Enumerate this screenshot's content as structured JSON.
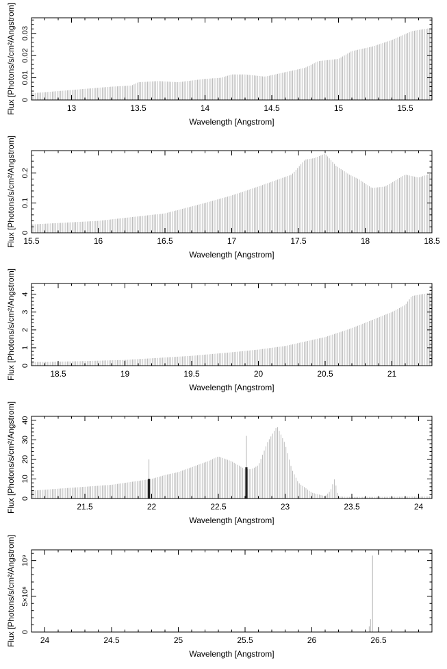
{
  "chart_data": [
    {
      "type": "bar",
      "xlabel": "Wavelength [Angstrom]",
      "ylabel": "Flux [Photons/s/cm²/Angstrom]",
      "xlim": [
        12.7,
        15.7
      ],
      "ylim": [
        0,
        0.037
      ],
      "xticks": [
        13,
        13.5,
        14,
        14.5,
        15,
        15.5
      ],
      "xtick_labels": [
        "13",
        "13.5",
        "14",
        "14.5",
        "15",
        "15.5"
      ],
      "yticks": [
        0,
        0.01,
        0.02,
        0.03
      ],
      "ytick_labels": [
        "0",
        "0.01",
        "0.02",
        "0.03"
      ],
      "bin_width": 0.0125,
      "color": "#b4b4b4",
      "envelope_x": [
        12.7,
        13.0,
        13.3,
        13.45,
        13.5,
        13.65,
        13.8,
        14.0,
        14.12,
        14.2,
        14.3,
        14.45,
        14.6,
        14.75,
        14.85,
        15.0,
        15.1,
        15.25,
        15.4,
        15.55,
        15.7
      ],
      "envelope_y": [
        0.003,
        0.0045,
        0.006,
        0.0065,
        0.008,
        0.0085,
        0.008,
        0.0095,
        0.01,
        0.0115,
        0.0115,
        0.0105,
        0.0125,
        0.0145,
        0.0175,
        0.0185,
        0.022,
        0.024,
        0.027,
        0.031,
        0.0325
      ],
      "lines": []
    },
    {
      "type": "bar",
      "xlabel": "Wavelength [Angstrom]",
      "ylabel": "Flux [Photons/s/cm²/Angstrom]",
      "xlim": [
        15.5,
        18.5
      ],
      "ylim": [
        0,
        0.275
      ],
      "xticks": [
        15.5,
        16,
        16.5,
        17,
        17.5,
        18,
        18.5
      ],
      "xtick_labels": [
        "15.5",
        "16",
        "16.5",
        "17",
        "17.5",
        "18",
        "18.5"
      ],
      "yticks": [
        0,
        0.1,
        0.2
      ],
      "ytick_labels": [
        "0",
        "0.1",
        "0.2"
      ],
      "bin_width": 0.0125,
      "color": "#b4b4b4",
      "envelope_x": [
        15.5,
        16.0,
        16.5,
        16.8,
        17.0,
        17.2,
        17.45,
        17.55,
        17.62,
        17.7,
        17.78,
        17.88,
        17.95,
        18.05,
        18.15,
        18.3,
        18.4,
        18.5
      ],
      "envelope_y": [
        0.028,
        0.04,
        0.065,
        0.1,
        0.125,
        0.155,
        0.195,
        0.245,
        0.25,
        0.265,
        0.225,
        0.195,
        0.18,
        0.15,
        0.155,
        0.195,
        0.185,
        0.2
      ],
      "lines": []
    },
    {
      "type": "bar",
      "xlabel": "Wavelength [Angstrom]",
      "ylabel": "Flux [Photons/s/cm²/Angstrom]",
      "xlim": [
        18.3,
        21.3
      ],
      "ylim": [
        0,
        4.6
      ],
      "xticks": [
        18.5,
        19,
        19.5,
        20,
        20.5,
        21
      ],
      "xtick_labels": [
        "18.5",
        "19",
        "19.5",
        "20",
        "20.5",
        "21"
      ],
      "yticks": [
        0,
        1,
        2,
        3,
        4
      ],
      "ytick_labels": [
        "0",
        "1",
        "2",
        "3",
        "4"
      ],
      "bin_width": 0.0125,
      "color": "#b4b4b4",
      "envelope_x": [
        18.3,
        18.5,
        19.0,
        19.5,
        19.8,
        20.0,
        20.2,
        20.5,
        20.7,
        20.9,
        21.0,
        21.1,
        21.15,
        21.3
      ],
      "envelope_y": [
        0.2,
        0.22,
        0.32,
        0.55,
        0.75,
        0.9,
        1.1,
        1.6,
        2.1,
        2.7,
        3.0,
        3.4,
        3.9,
        4.1
      ],
      "lines": []
    },
    {
      "type": "bar",
      "xlabel": "Wavelength [Angstrom]",
      "ylabel": "Flux [Photons/s/cm²/Angstrom]",
      "xlim": [
        21.1,
        24.1
      ],
      "ylim": [
        0,
        42
      ],
      "xticks": [
        21.5,
        22,
        22.5,
        23,
        23.5,
        24
      ],
      "xtick_labels": [
        "21.5",
        "22",
        "22.5",
        "23",
        "23.5",
        "24"
      ],
      "yticks": [
        0,
        10,
        20,
        30,
        40
      ],
      "ytick_labels": [
        "0",
        "10",
        "20",
        "30",
        "40"
      ],
      "bin_width": 0.0125,
      "color": "#b4b4b4",
      "envelope_x": [
        21.1,
        21.3,
        21.5,
        21.7,
        22.0,
        22.1,
        22.2,
        22.3,
        22.42,
        22.5,
        22.6,
        22.7,
        22.75,
        22.8,
        22.87,
        22.94,
        23.0,
        23.05,
        23.1,
        23.2,
        23.3,
        23.34,
        23.37,
        23.4,
        23.5,
        24.1
      ],
      "envelope_y": [
        4,
        5,
        6,
        7,
        10,
        12,
        13.5,
        16,
        19,
        21.5,
        19,
        15,
        15,
        17,
        29,
        37,
        28,
        15,
        8,
        3,
        1.2,
        4,
        10,
        1,
        0.8,
        1
      ],
      "lines": [
        {
          "x": 21.98,
          "top": 20,
          "value": 10
        },
        {
          "x": 22.71,
          "top": 32,
          "value": 16
        }
      ]
    },
    {
      "type": "bar",
      "xlabel": "Wavelength [Angstrom]",
      "ylabel": "Flux [Photons/s/cm²/Angstrom]",
      "xlim": [
        23.9,
        26.9
      ],
      "ylim": [
        0,
        1150000000
      ],
      "xticks": [
        24,
        24.5,
        25,
        25.5,
        26,
        26.5
      ],
      "xtick_labels": [
        "24",
        "24.5",
        "25",
        "25.5",
        "26",
        "26.5"
      ],
      "yticks": [
        0,
        500000000,
        1000000000
      ],
      "ytick_labels": [
        "0",
        "5×10⁸",
        "10⁹"
      ],
      "bin_width": 0.0125,
      "color": "#b4b4b4",
      "envelope_x": [
        23.9,
        26.4
      ],
      "envelope_y": [
        0,
        0
      ],
      "lines": [
        {
          "x": 26.43,
          "top": 80000000,
          "value": 80000000
        },
        {
          "x": 26.44,
          "top": 180000000,
          "value": 180000000
        },
        {
          "x": 26.455,
          "top": 1070000000,
          "value": 1070000000
        }
      ]
    }
  ]
}
